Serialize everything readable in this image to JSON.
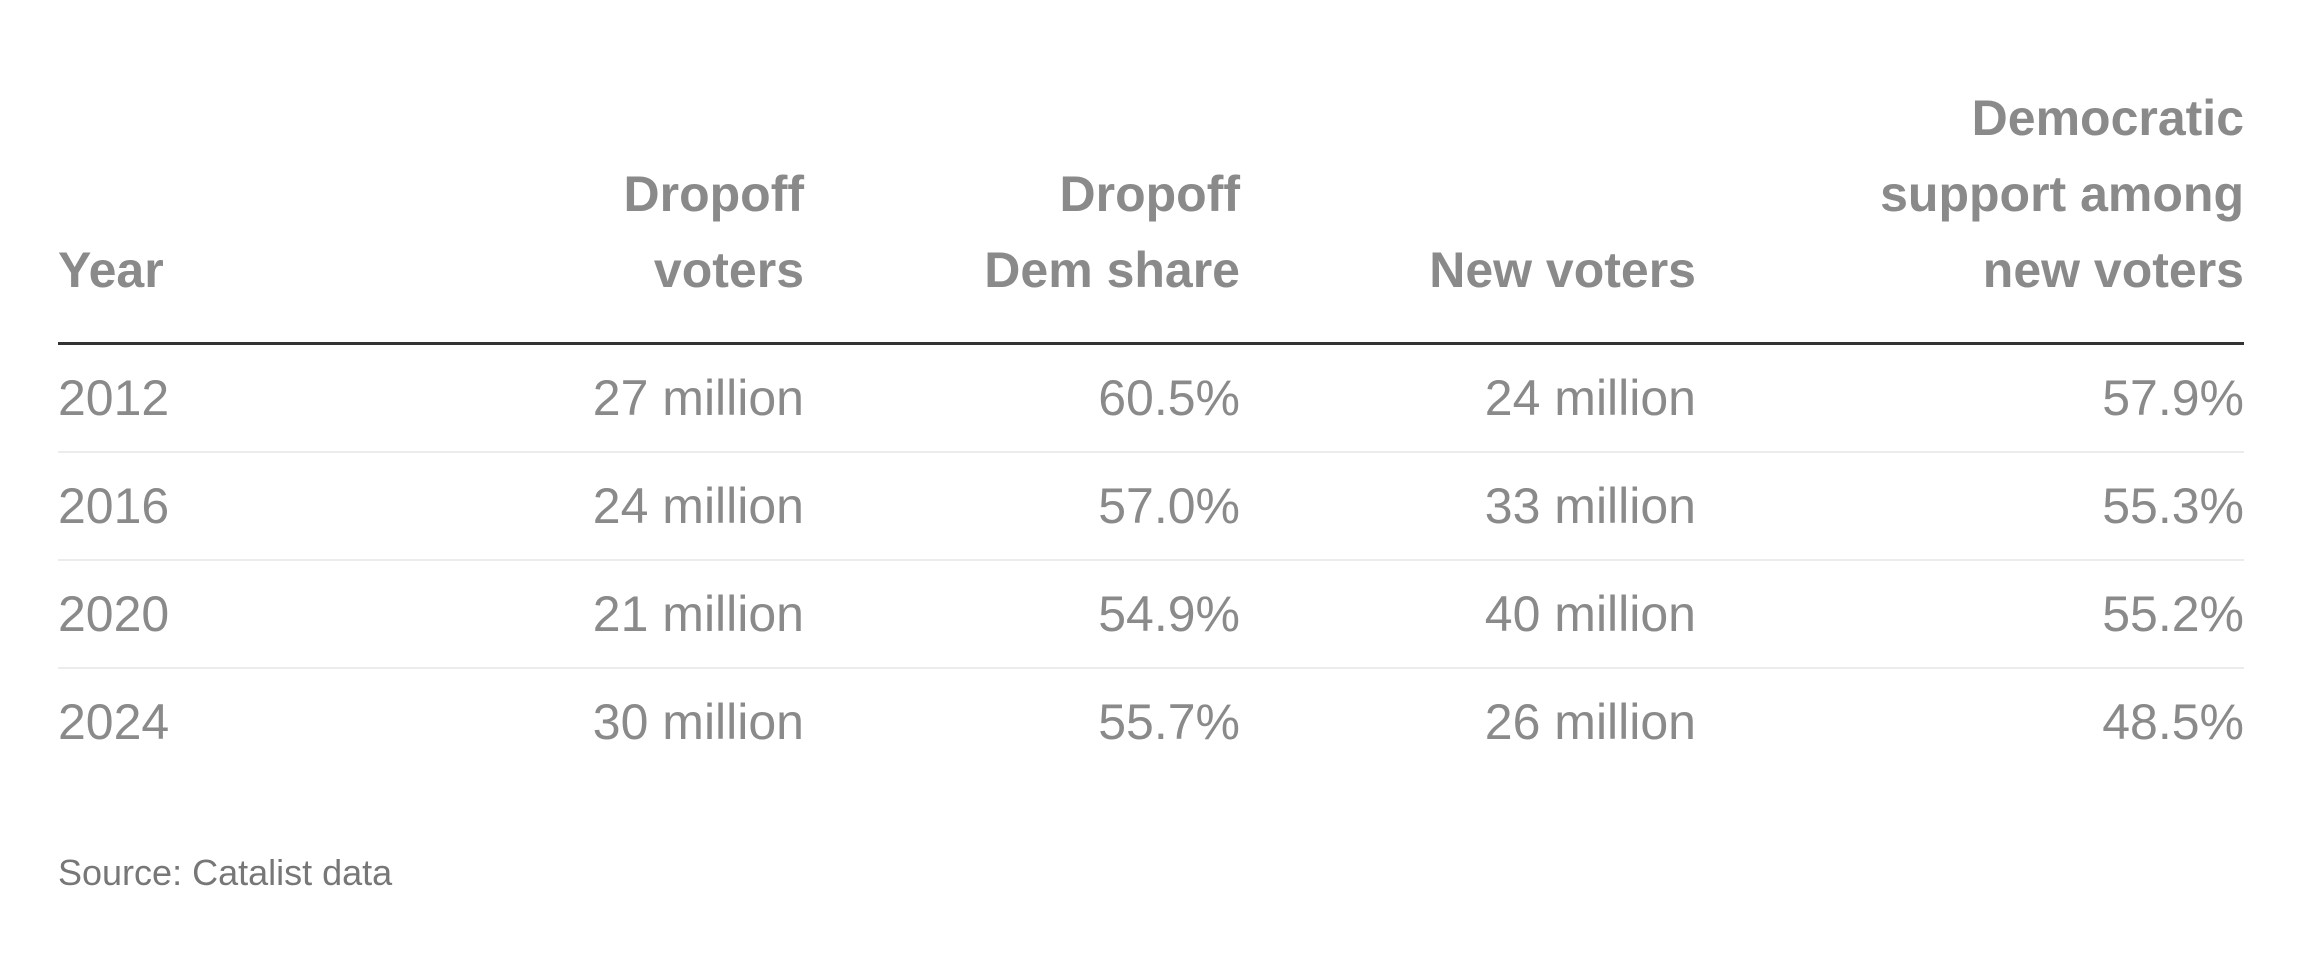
{
  "table": {
    "headers": {
      "year": "Year",
      "dropoff_voters": [
        "Dropoff",
        "voters"
      ],
      "dropoff_dem_share": [
        "Dropoff",
        "Dem share"
      ],
      "new_voters": "New voters",
      "dem_support_new": [
        "Democratic",
        "support among",
        "new voters"
      ]
    },
    "rows": [
      {
        "year": "2012",
        "dropoff_voters": "27 million",
        "dropoff_dem_share": "60.5%",
        "new_voters": "24 million",
        "dem_support_new": "57.9%"
      },
      {
        "year": "2016",
        "dropoff_voters": "24 million",
        "dropoff_dem_share": "57.0%",
        "new_voters": "33 million",
        "dem_support_new": "55.3%"
      },
      {
        "year": "2020",
        "dropoff_voters": "21 million",
        "dropoff_dem_share": "54.9%",
        "new_voters": "40 million",
        "dem_support_new": "55.2%"
      },
      {
        "year": "2024",
        "dropoff_voters": "30 million",
        "dropoff_dem_share": "55.7%",
        "new_voters": "26 million",
        "dem_support_new": "48.5%"
      }
    ]
  },
  "footer": {
    "source": "Source: Catalist data"
  }
}
